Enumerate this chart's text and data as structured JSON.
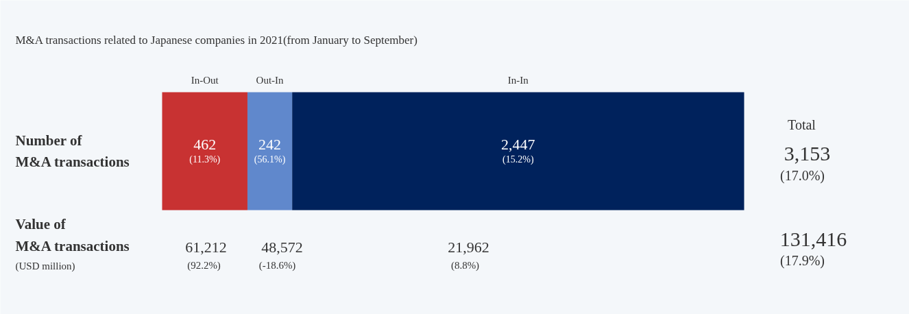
{
  "chart_data": {
    "type": "bar",
    "orientation": "horizontal",
    "stacked": true,
    "title": "M&A transactions related to Japanese companies in 2021(from January to September)",
    "categories": [
      "Number of\nM&A transactions"
    ],
    "series": [
      {
        "name": "In-Out",
        "color": "#c83232",
        "values": [
          462
        ],
        "value_labels": [
          "462\n(11.3%)"
        ]
      },
      {
        "name": "Out-In",
        "color": "#6088cc",
        "values": [
          242
        ],
        "value_labels": [
          "242\n(56.1%)"
        ]
      },
      {
        "name": "In-In",
        "color": "#00225c",
        "values": [
          2447
        ],
        "value_labels": [
          "2,447\n(15.2%)"
        ]
      }
    ],
    "annotations": [
      "Value of",
      "M&A transactions",
      "(USD million)",
      "61,212",
      "(92.2%)",
      "48,572",
      "(-18.6%)",
      "21,962",
      "(8.8%)",
      "Total",
      "3,153",
      "(17.0%)",
      "131,416",
      "(17.9%)"
    ]
  }
}
